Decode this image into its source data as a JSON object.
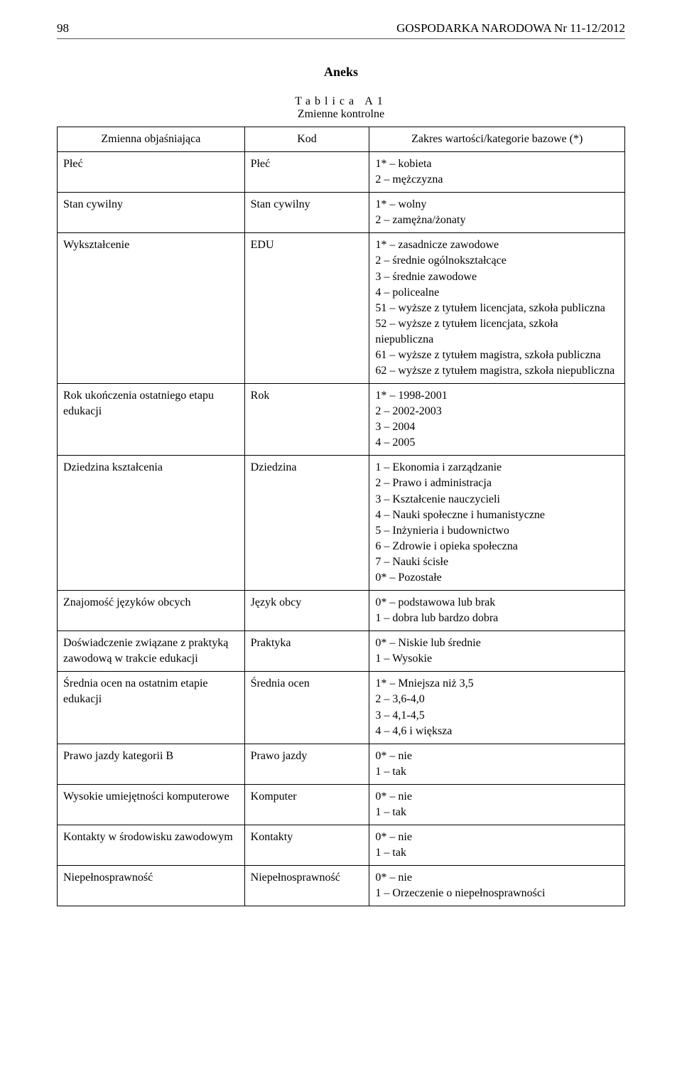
{
  "page_number": "98",
  "running_head": "GOSPODARKA NARODOWA Nr 11-12/2012",
  "aneks_title": "Aneks",
  "tablica_caption": "Tablica A1",
  "tablica_subtitle": "Zmienne kontrolne",
  "columns": {
    "c1": "Zmienna objaśniająca",
    "c2": "Kod",
    "c3": "Zakres wartości/kategorie bazowe (*)"
  },
  "rows": [
    {
      "variable": "Płeć",
      "code": "Płeć",
      "values": "1* – kobieta\n2 – mężczyzna"
    },
    {
      "variable": "Stan cywilny",
      "code": "Stan cywilny",
      "values": "1* – wolny\n2 – zamężna/żonaty"
    },
    {
      "variable": "Wykształcenie",
      "code": "EDU",
      "values": "1* – zasadnicze zawodowe\n2 – średnie ogólnokształcące\n3 – średnie zawodowe\n4 – policealne\n51 – wyższe z tytułem licencjata, szkoła publiczna\n52 – wyższe z tytułem licencjata, szkoła niepubliczna\n61 – wyższe z tytułem magistra, szkoła publiczna\n62 – wyższe z tytułem magistra, szkoła niepubliczna"
    },
    {
      "variable": "Rok ukończenia ostatniego etapu edukacji",
      "code": "Rok",
      "values": "1* – 1998-2001\n2 – 2002-2003\n3 – 2004\n4 – 2005"
    },
    {
      "variable": "Dziedzina kształcenia",
      "code": "Dziedzina",
      "values": "1 – Ekonomia i zarządzanie\n2 – Prawo i administracja\n3 – Kształcenie nauczycieli\n4 – Nauki społeczne i humanistyczne\n5 – Inżynieria i budownictwo\n6 – Zdrowie i opieka społeczna\n7 – Nauki ścisłe\n0* – Pozostałe"
    },
    {
      "variable": "Znajomość języków obcych",
      "code": "Język obcy",
      "values": "0* – podstawowa lub brak\n1 – dobra lub bardzo dobra"
    },
    {
      "variable": "Doświadczenie związane z praktyką zawodową w trakcie edukacji",
      "code": "Praktyka",
      "values": "0* – Niskie lub średnie\n1 – Wysokie"
    },
    {
      "variable": "Średnia ocen na ostatnim etapie edukacji",
      "code": "Średnia ocen",
      "values": "1* – Mniejsza niż 3,5\n2 – 3,6-4,0\n3 – 4,1-4,5\n4 – 4,6 i większa"
    },
    {
      "variable": "Prawo jazdy kategorii B",
      "code": "Prawo jazdy",
      "values": "0* – nie\n1 – tak"
    },
    {
      "variable": "Wysokie umiejętności komputerowe",
      "code": "Komputer",
      "values": "0* – nie\n1 – tak"
    },
    {
      "variable": "Kontakty w środowisku zawodowym",
      "code": "Kontakty",
      "values": "0* – nie\n1 – tak"
    },
    {
      "variable": "Niepełnosprawność",
      "code": "Niepełnosprawność",
      "values": "0* – nie\n1 – Orzeczenie o niepełnosprawności"
    }
  ]
}
